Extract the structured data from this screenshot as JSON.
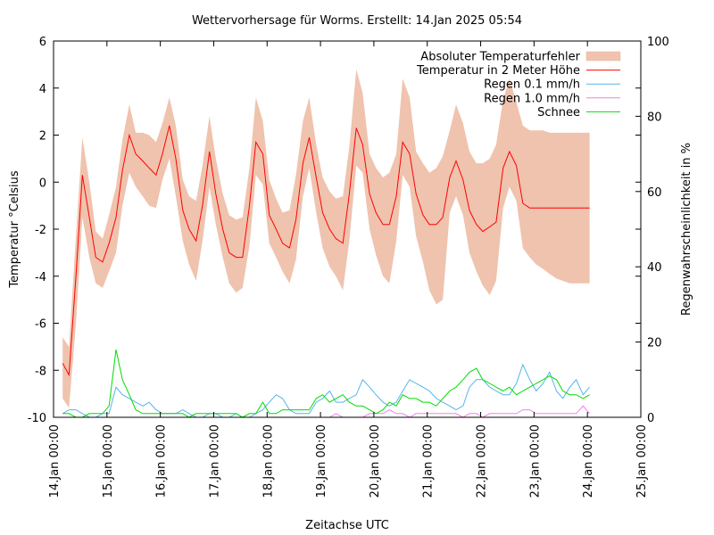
{
  "chart_data": {
    "type": "line",
    "title": "Wettervorhersage für Worms. Erstellt: 14.Jan 2025 05:54",
    "xlabel": "Zeitachse UTC",
    "ylabel": "Temperatur °Celsius",
    "y2label": "Regenwahrscheinlichkeit in %",
    "ylim": [
      -10,
      6
    ],
    "y2lim": [
      0,
      100
    ],
    "yticks": [
      -10,
      -8,
      -6,
      -4,
      -2,
      0,
      2,
      4,
      6
    ],
    "y2ticks": [
      0,
      20,
      40,
      60,
      80,
      100
    ],
    "xlim_days": [
      0,
      11
    ],
    "xtick_labels": [
      "14.Jan 00:00",
      "15.Jan 00:00",
      "16.Jan 00:00",
      "17.Jan 00:00",
      "18.Jan 00:00",
      "19.Jan 00:00",
      "20.Jan 00:00",
      "21.Jan 00:00",
      "22.Jan 00:00",
      "23.Jan 00:00",
      "24.Jan 00:00",
      "25.Jan 00:00"
    ],
    "grid": false,
    "legend_position": "top-right",
    "x_unit": "days since 14.Jan 00:00 UTC",
    "x": [
      0.17,
      0.29,
      0.42,
      0.54,
      0.67,
      0.79,
      0.92,
      1.04,
      1.17,
      1.29,
      1.42,
      1.54,
      1.67,
      1.79,
      1.92,
      2.04,
      2.17,
      2.29,
      2.42,
      2.54,
      2.67,
      2.79,
      2.92,
      3.04,
      3.17,
      3.29,
      3.42,
      3.54,
      3.67,
      3.79,
      3.92,
      4.04,
      4.17,
      4.29,
      4.42,
      4.54,
      4.67,
      4.79,
      4.92,
      5.04,
      5.17,
      5.29,
      5.42,
      5.54,
      5.67,
      5.79,
      5.92,
      6.04,
      6.17,
      6.29,
      6.42,
      6.54,
      6.67,
      6.79,
      6.92,
      7.04,
      7.17,
      7.29,
      7.42,
      7.54,
      7.67,
      7.79,
      7.92,
      8.04,
      8.17,
      8.29,
      8.42,
      8.54,
      8.67,
      8.79,
      8.92,
      9.04,
      9.17,
      9.29,
      9.42,
      9.54,
      9.67,
      9.79,
      9.92,
      10.04
    ],
    "series": [
      {
        "name": "Temperatur in 2 Meter Höhe",
        "color": "#ff0000",
        "values": [
          -7.7,
          -8.2,
          -4.0,
          0.3,
          -1.5,
          -3.2,
          -3.4,
          -2.6,
          -1.5,
          0.5,
          2.0,
          1.2,
          0.9,
          0.6,
          0.3,
          1.2,
          2.4,
          1.0,
          -1.2,
          -2.0,
          -2.5,
          -1.0,
          1.3,
          -0.5,
          -2.0,
          -3.0,
          -3.2,
          -3.2,
          -1.0,
          1.7,
          1.2,
          -1.4,
          -2.0,
          -2.6,
          -2.8,
          -1.6,
          0.8,
          1.9,
          0.2,
          -1.3,
          -2.0,
          -2.4,
          -2.6,
          -0.5,
          2.3,
          1.6,
          -0.5,
          -1.3,
          -1.8,
          -1.8,
          -0.6,
          1.7,
          1.2,
          -0.5,
          -1.4,
          -1.8,
          -1.8,
          -1.5,
          0.2,
          0.9,
          0.1,
          -1.2,
          -1.8,
          -2.1,
          -1.9,
          -1.7,
          0.6,
          1.3,
          0.7,
          -0.9,
          -1.1,
          -1.1,
          -1.1,
          -1.1,
          -1.1,
          -1.1,
          -1.1,
          -1.1,
          -1.1,
          -1.1
        ]
      },
      {
        "name": "Absoluter Temperaturfehler",
        "color": "#efc3ae",
        "type": "band",
        "lower": [
          -9.2,
          -9.6,
          -6.0,
          -1.5,
          -3.2,
          -4.3,
          -4.5,
          -3.8,
          -3.0,
          -1.0,
          0.4,
          -0.2,
          -0.6,
          -1.0,
          -1.1,
          0.1,
          1.0,
          -0.6,
          -2.5,
          -3.5,
          -4.2,
          -2.5,
          -0.2,
          -1.8,
          -3.2,
          -4.3,
          -4.7,
          -4.5,
          -2.7,
          0.3,
          -0.1,
          -2.6,
          -3.2,
          -3.8,
          -4.3,
          -3.3,
          -0.6,
          0.6,
          -1.3,
          -2.8,
          -3.6,
          -4.0,
          -4.6,
          -2.5,
          0.7,
          0.4,
          -2.0,
          -3.1,
          -4.0,
          -4.3,
          -2.5,
          0.3,
          -0.2,
          -2.3,
          -3.4,
          -4.6,
          -5.2,
          -5.0,
          -1.3,
          -0.6,
          -1.4,
          -3.0,
          -3.8,
          -4.4,
          -4.8,
          -4.2,
          -1.1,
          -0.2,
          -0.8,
          -2.8,
          -3.2,
          -3.5,
          -3.7,
          -3.9,
          -4.1,
          -4.2,
          -4.3,
          -4.3,
          -4.3,
          -4.3
        ],
        "upper": [
          -6.6,
          -7.0,
          -2.3,
          1.9,
          0.0,
          -2.1,
          -2.4,
          -1.4,
          -0.2,
          1.8,
          3.3,
          2.1,
          2.1,
          2.0,
          1.7,
          2.5,
          3.6,
          2.4,
          0.1,
          -0.6,
          -0.8,
          0.7,
          2.8,
          1.0,
          -0.5,
          -1.4,
          -1.6,
          -1.5,
          0.6,
          3.6,
          2.6,
          0.1,
          -0.7,
          -1.3,
          -1.2,
          0.3,
          2.6,
          3.6,
          1.6,
          0.2,
          -0.4,
          -0.7,
          -0.6,
          1.5,
          4.8,
          3.8,
          1.2,
          0.6,
          0.2,
          0.4,
          1.2,
          4.4,
          3.6,
          1.3,
          0.8,
          0.4,
          0.6,
          1.1,
          2.2,
          3.3,
          2.5,
          1.3,
          0.8,
          0.8,
          1.0,
          1.6,
          3.5,
          4.4,
          3.4,
          2.4,
          2.2,
          2.2,
          2.2,
          2.1,
          2.1,
          2.1,
          2.1,
          2.1,
          2.1,
          2.1
        ]
      },
      {
        "name": "Regen 0.1 mm/h",
        "color": "#56b4e9",
        "axis": "right",
        "values": [
          1,
          2,
          2,
          1,
          0,
          0,
          1,
          1,
          8,
          6,
          5,
          4,
          3,
          4,
          2,
          1,
          1,
          1,
          2,
          1,
          0,
          0,
          1,
          1,
          0,
          0,
          1,
          0,
          0,
          1,
          2,
          4,
          6,
          5,
          2,
          1,
          1,
          1,
          4,
          5,
          7,
          4,
          4,
          5,
          6,
          10,
          8,
          6,
          4,
          3,
          4,
          7,
          10,
          9,
          8,
          7,
          5,
          4,
          3,
          2,
          3,
          8,
          10,
          10,
          8,
          7,
          6,
          6,
          9,
          14,
          10,
          7,
          9,
          12,
          7,
          5,
          8,
          10,
          6,
          8
        ]
      },
      {
        "name": "Regen 1.0 mm/h",
        "color": "#ee82ee",
        "axis": "right",
        "values": [
          0,
          0,
          0,
          0,
          0,
          0,
          0,
          0,
          0,
          0,
          0,
          0,
          0,
          0,
          0,
          0,
          0,
          0,
          0,
          0,
          0,
          0,
          0,
          0,
          0,
          0,
          0,
          0,
          0,
          0,
          0,
          0,
          0,
          0,
          0,
          0,
          0,
          0,
          0,
          0,
          0,
          1,
          0,
          0,
          0,
          0,
          1,
          1,
          1,
          2,
          1,
          1,
          0,
          1,
          1,
          1,
          1,
          1,
          1,
          1,
          0,
          1,
          1,
          0,
          1,
          1,
          1,
          1,
          1,
          2,
          2,
          1,
          1,
          1,
          1,
          1,
          1,
          1,
          3,
          1
        ]
      },
      {
        "name": "Schnee",
        "color": "#00dd00",
        "axis": "right",
        "values": [
          1,
          1,
          0,
          0,
          1,
          1,
          1,
          3,
          18,
          10,
          6,
          2,
          1,
          1,
          1,
          1,
          1,
          1,
          1,
          0,
          1,
          1,
          1,
          1,
          1,
          1,
          1,
          0,
          1,
          1,
          4,
          1,
          1,
          2,
          2,
          2,
          2,
          2,
          5,
          6,
          4,
          5,
          6,
          4,
          3,
          3,
          2,
          1,
          2,
          4,
          3,
          6,
          5,
          5,
          4,
          4,
          3,
          5,
          7,
          8,
          10,
          12,
          13,
          10,
          9,
          8,
          7,
          8,
          6,
          7,
          8,
          9,
          10,
          11,
          10,
          7,
          6,
          6,
          5,
          6
        ]
      }
    ],
    "legend": [
      {
        "label": "Absoluter Temperaturfehler",
        "kind": "band"
      },
      {
        "label": "Temperatur in 2 Meter Höhe",
        "kind": "line"
      },
      {
        "label": "Regen 0.1 mm/h",
        "kind": "line"
      },
      {
        "label": "Regen 1.0 mm/h",
        "kind": "line"
      },
      {
        "label": "Schnee",
        "kind": "line"
      }
    ]
  }
}
